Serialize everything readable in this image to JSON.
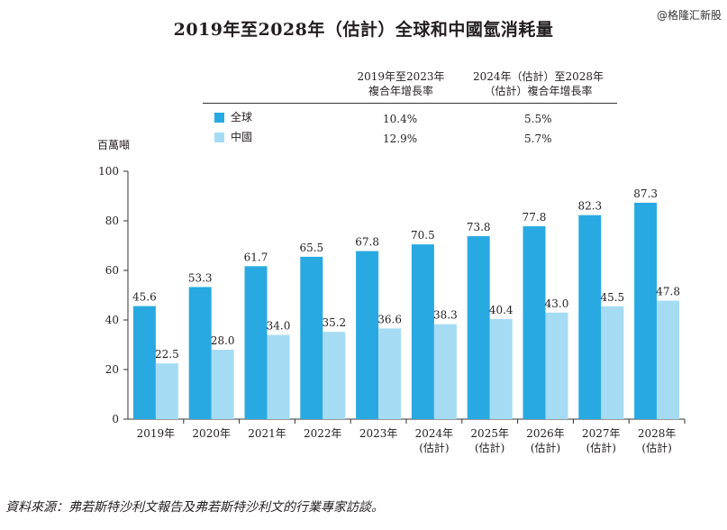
{
  "title": "2019年至2028年（估計）全球和中國氫消耗量",
  "watermark": "@格隆汇新股",
  "cagr_table": {
    "col1_line1": "2019年至2023年",
    "col1_line2": "複合年增長率",
    "col2_line1": "2024年（估計）至2028年",
    "col2_line2": "（估計）複合年增長率",
    "rows": [
      {
        "label": "全球",
        "col1": "10.4%",
        "col2": "5.5%",
        "color": "#29a9e1"
      },
      {
        "label": "中國",
        "col1": "12.9%",
        "col2": "5.7%",
        "color": "#a6dcf3"
      }
    ]
  },
  "chart_data": {
    "type": "bar",
    "ylabel": "百萬噸",
    "ylim": [
      0,
      100
    ],
    "yticks": [
      0,
      20,
      40,
      60,
      80,
      100
    ],
    "categories": [
      [
        "2019年"
      ],
      [
        "2020年"
      ],
      [
        "2021年"
      ],
      [
        "2022年"
      ],
      [
        "2023年"
      ],
      [
        "2024年",
        "(估計)"
      ],
      [
        "2025年",
        "(估計)"
      ],
      [
        "2026年",
        "(估計)"
      ],
      [
        "2027年",
        "(估計)"
      ],
      [
        "2028年",
        "(估計)"
      ]
    ],
    "series": [
      {
        "name": "全球",
        "color": "#29a9e1",
        "values": [
          45.6,
          53.3,
          61.7,
          65.5,
          67.8,
          70.5,
          73.8,
          77.8,
          82.3,
          87.3
        ],
        "labels": [
          "45.6",
          "53.3",
          "61.7",
          "65.5",
          "67.8",
          "70.5",
          "73.8",
          "77.8",
          "82.3",
          "87.3"
        ]
      },
      {
        "name": "中國",
        "color": "#a6dcf3",
        "values": [
          22.5,
          28.0,
          34.0,
          35.2,
          36.6,
          38.3,
          40.4,
          43.0,
          45.5,
          47.8
        ],
        "labels": [
          "22.5",
          "28.0",
          "34.0",
          "35.2",
          "36.6",
          "38.3",
          "40.4",
          "43.0",
          "45.5",
          "47.8"
        ]
      }
    ],
    "grid": false
  },
  "source": "資料來源：弗若斯特沙利文報告及弗若斯特沙利文的行業專家訪談。"
}
